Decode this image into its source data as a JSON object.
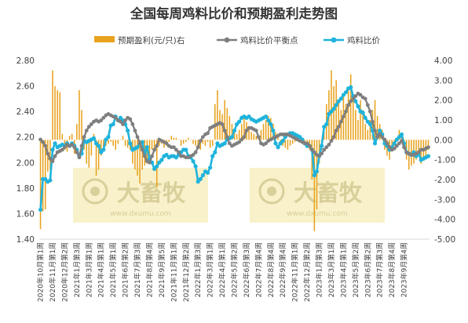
{
  "chart_data": {
    "type": "bar+line",
    "title": "全国每周鸡料比价和预期盈利走势图",
    "legend": [
      {
        "name": "预期盈利(元/只)右",
        "color": "#e8a21e",
        "marker": "bar"
      },
      {
        "name": "鸡料比价平衡点",
        "color": "#7f7f7f",
        "marker": "line-dot"
      },
      {
        "name": "鸡料比价",
        "color": "#1fb3dc",
        "marker": "line-dot"
      }
    ],
    "legend_position": "top",
    "y_left": {
      "min": 1.4,
      "max": 2.8,
      "ticks": [
        "1.40",
        "1.60",
        "1.80",
        "2.00",
        "2.20",
        "2.40",
        "2.60",
        "2.80"
      ]
    },
    "y_right": {
      "min": -5.0,
      "max": 4.0,
      "ticks": [
        "4.00",
        "3.00",
        "2.00",
        "1.00",
        "0.00",
        "-1.00",
        "-2.00",
        "-3.00",
        "-4.00",
        "-5.00"
      ]
    },
    "x_tick_labels": [
      "2020年10月第1周",
      "2020年11月第1周",
      "2020年12月第2周",
      "2021年1月第3周",
      "2021年3月第1周",
      "2021年4月第1周",
      "2021年5月第1周",
      "2021年6月第2周",
      "2021年7月第3周",
      "2021年8月第4周",
      "2021年9月第5周",
      "2021年11月第1周",
      "2021年12月第2周",
      "2022年1月第3周",
      "2022年3月第1周",
      "2022年4月第1周",
      "2022年5月第2周",
      "2022年6月第3周",
      "2022年7月第4周",
      "2022年8月第4周",
      "2022年9月第4周",
      "2022年11月第1周",
      "2022年12月第2周",
      "2023年1月第3周",
      "2023年3月第1周",
      "2023年4月第1周",
      "2023年5月第2周",
      "2023年6月第2周",
      "2023年7月第3周",
      "2023年8月第4周",
      "2023年9月第4周"
    ],
    "x_label_every": 5,
    "watermark": {
      "text": "大畜牧",
      "sub": "www.dxumu.com",
      "color": "#f5ecb8"
    },
    "series": [
      {
        "name": "鸡料比价",
        "axis": "left",
        "color": "#1fb3dc",
        "values": [
          1.63,
          1.87,
          1.87,
          1.85,
          1.86,
          2.1,
          2.15,
          2.12,
          2.13,
          2.14,
          2.13,
          2.15,
          2.13,
          2.15,
          2.13,
          2.1,
          2.05,
          2.07,
          2.17,
          2.16,
          2.17,
          2.18,
          2.19,
          2.15,
          2.13,
          2.08,
          2.1,
          2.18,
          2.2,
          2.29,
          2.3,
          2.36,
          2.33,
          2.35,
          2.33,
          2.3,
          2.25,
          2.15,
          2.1,
          2.11,
          2.12,
          2.15,
          2.16,
          2.07,
          2.12,
          2.03,
          2.0,
          1.95,
          1.97,
          2.0,
          2.02,
          2.05,
          2.06,
          2.04,
          2.05,
          2.05,
          2.04,
          2.06,
          2.08,
          2.1,
          2.1,
          2.05,
          2.04,
          2.01,
          1.97,
          1.85,
          1.87,
          1.9,
          1.93,
          1.92,
          1.96,
          2.05,
          2.08,
          2.15,
          2.13,
          2.14,
          2.15,
          2.18,
          2.19,
          2.2,
          2.25,
          2.3,
          2.32,
          2.35,
          2.36,
          2.35,
          2.36,
          2.34,
          2.33,
          2.32,
          2.33,
          2.34,
          2.35,
          2.36,
          2.33,
          2.3,
          2.25,
          2.15,
          2.12,
          2.15,
          2.17,
          2.2,
          2.22,
          2.23,
          2.23,
          2.22,
          2.21,
          2.2,
          2.18,
          2.15,
          2.13,
          2.13,
          2.1,
          1.9,
          1.93,
          2.05,
          2.13,
          2.28,
          2.3,
          2.38,
          2.4,
          2.42,
          2.45,
          2.48,
          2.5,
          2.53,
          2.55,
          2.58,
          2.59,
          2.52,
          2.48,
          2.44,
          2.4,
          2.39,
          2.35,
          2.32,
          2.3,
          2.25,
          2.15,
          2.2,
          2.25,
          2.22,
          2.15,
          2.13,
          2.1,
          2.12,
          2.15,
          2.18,
          2.2,
          2.22,
          2.15,
          2.08,
          2.07,
          2.06,
          2.08,
          2.05,
          2.07,
          2.02,
          2.03,
          2.04,
          2.05
        ]
      },
      {
        "name": "鸡料比价平衡点",
        "axis": "left",
        "color": "#7f7f7f",
        "values": [
          2.18,
          2.16,
          2.13,
          2.07,
          2.03,
          2.01,
          2.05,
          2.08,
          2.09,
          2.1,
          2.12,
          2.14,
          2.13,
          2.14,
          2.12,
          2.08,
          2.04,
          2.13,
          2.2,
          2.25,
          2.28,
          2.3,
          2.32,
          2.33,
          2.32,
          2.33,
          2.35,
          2.37,
          2.38,
          2.37,
          2.36,
          2.35,
          2.33,
          2.32,
          2.3,
          2.33,
          2.35,
          2.34,
          2.3,
          2.25,
          2.2,
          2.15,
          2.1,
          2.05,
          2.01,
          2.0,
          2.05,
          2.1,
          2.13,
          2.18,
          2.17,
          2.16,
          2.15,
          2.13,
          2.12,
          2.12,
          2.1,
          2.08,
          2.05,
          2.05,
          2.04,
          2.04,
          2.05,
          2.06,
          2.08,
          2.12,
          2.17,
          2.2,
          2.22,
          2.23,
          2.27,
          2.28,
          2.29,
          2.3,
          2.31,
          2.3,
          2.25,
          2.2,
          2.15,
          2.13,
          2.14,
          2.15,
          2.16,
          2.18,
          2.2,
          2.25,
          2.27,
          2.27,
          2.26,
          2.25,
          2.2,
          2.15,
          2.14,
          2.15,
          2.17,
          2.18,
          2.19,
          2.2,
          2.21,
          2.22,
          2.22,
          2.22,
          2.22,
          2.21,
          2.2,
          2.19,
          2.18,
          2.17,
          2.16,
          2.15,
          2.15,
          2.13,
          2.1,
          2.08,
          2.06,
          2.05,
          2.07,
          2.1,
          2.12,
          2.14,
          2.17,
          2.2,
          2.25,
          2.28,
          2.32,
          2.36,
          2.4,
          2.45,
          2.48,
          2.5,
          2.52,
          2.54,
          2.53,
          2.51,
          2.5,
          2.45,
          2.4,
          2.32,
          2.25,
          2.2,
          2.22,
          2.2,
          2.18,
          2.15,
          2.12,
          2.1,
          2.11,
          2.13,
          2.15,
          2.17,
          2.12,
          2.08,
          2.07,
          2.06,
          2.06,
          2.07,
          2.08,
          2.1,
          2.1,
          2.11,
          2.12
        ]
      },
      {
        "name": "预期盈利(元/只)右",
        "axis": "right",
        "color": "#e8a21e",
        "values": [
          -4.5,
          -3.6,
          -3.5,
          -1.6,
          -1.5,
          3.5,
          2.7,
          2.5,
          2.4,
          0.3,
          -0.5,
          -0.6,
          0.2,
          0.3,
          -0.7,
          0.8,
          2.5,
          1.5,
          -0.5,
          -1.2,
          -1.4,
          -0.8,
          0.3,
          -1.8,
          -1.5,
          -0.8,
          -0.4,
          -0.3,
          -0.2,
          -0.1,
          -0.3,
          -0.5,
          -0.2,
          0.0,
          0.2,
          -0.3,
          -0.4,
          -0.5,
          -1.2,
          -1.5,
          -1.8,
          -2.2,
          -1.5,
          -1.3,
          -1.2,
          -0.8,
          -0.5,
          -0.4,
          -2.4,
          -0.3,
          -0.2,
          -0.4,
          -0.3,
          -0.1,
          0.2,
          0.1,
          0.1,
          0.0,
          -0.3,
          -0.2,
          -0.1,
          0.1,
          0.0,
          -0.2,
          -0.3,
          -0.4,
          -0.5,
          -0.2,
          -0.3,
          -0.1,
          -0.4,
          -0.3,
          1.8,
          2.5,
          1.5,
          1.3,
          2.0,
          1.6,
          1.2,
          0.8,
          0.5,
          0.3,
          0.5,
          0.8,
          1.1,
          0.9,
          0.7,
          0.4,
          0.3,
          0.2,
          0.1,
          0.5,
          0.8,
          1.0,
          1.2,
          1.1,
          0.8,
          0.4,
          0.2,
          -0.1,
          -0.3,
          -0.4,
          -0.5,
          -0.3,
          -0.2,
          -0.1,
          0.1,
          0.0,
          -0.1,
          -0.2,
          -0.4,
          -0.5,
          -2.0,
          -4.6,
          -3.5,
          -1.2,
          -0.5,
          0.5,
          1.8,
          2.5,
          3.5,
          2.7,
          3.0,
          2.0,
          1.5,
          2.2,
          1.8,
          2.5,
          3.3,
          2.3,
          1.5,
          1.0,
          2.0,
          1.5,
          0.8,
          0.5,
          1.0,
          1.5,
          2.0,
          1.2,
          0.8,
          0.5,
          -0.5,
          -0.8,
          -1.0,
          -0.5,
          -0.3,
          -0.1,
          0.5,
          0.3,
          -0.5,
          -1.0,
          -1.5,
          -1.3,
          -1.2,
          -1.0,
          -0.8,
          -1.2,
          -1.0,
          -0.8,
          -0.5
        ]
      }
    ]
  }
}
